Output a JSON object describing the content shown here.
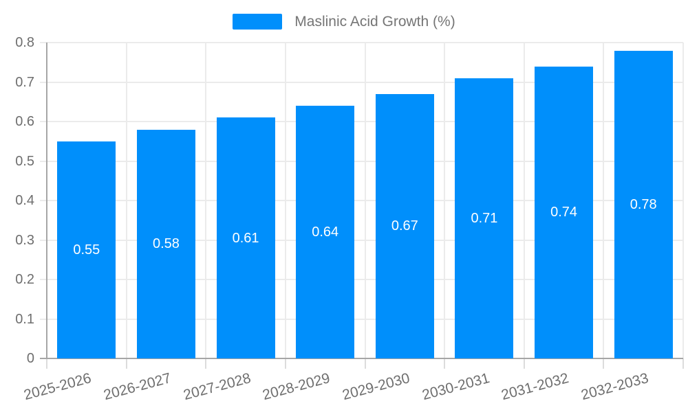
{
  "chart_data": {
    "type": "bar",
    "legend": "Maslinic Acid Growth (%)",
    "legend_position": "top",
    "categories": [
      "2025-2026",
      "2026-2027",
      "2027-2028",
      "2028-2029",
      "2029-2030",
      "2030-2031",
      "2031-2032",
      "2032-2033"
    ],
    "values": [
      0.55,
      0.58,
      0.61,
      0.64,
      0.67,
      0.71,
      0.74,
      0.78
    ],
    "value_labels": [
      "0.55",
      "0.58",
      "0.61",
      "0.64",
      "0.67",
      "0.71",
      "0.74",
      "0.78"
    ],
    "title": "",
    "xlabel": "",
    "ylabel": "",
    "ylim": [
      0,
      0.8
    ],
    "ytick_step": 0.1,
    "ytick_labels": [
      "0",
      "0.1",
      "0.2",
      "0.3",
      "0.4",
      "0.5",
      "0.6",
      "0.7",
      "0.8"
    ],
    "grid": true,
    "x_label_rotation_deg": -15,
    "colors": {
      "bar": "#008FFB",
      "bar_label": "#FFFFFF",
      "axis_label": "#6E6E6E",
      "legend_text": "#757575",
      "gridline": "#EBEBEB",
      "tick": "#DCDCDC",
      "axis_line": "#A6A6A6",
      "background": "#FFFFFF"
    }
  }
}
